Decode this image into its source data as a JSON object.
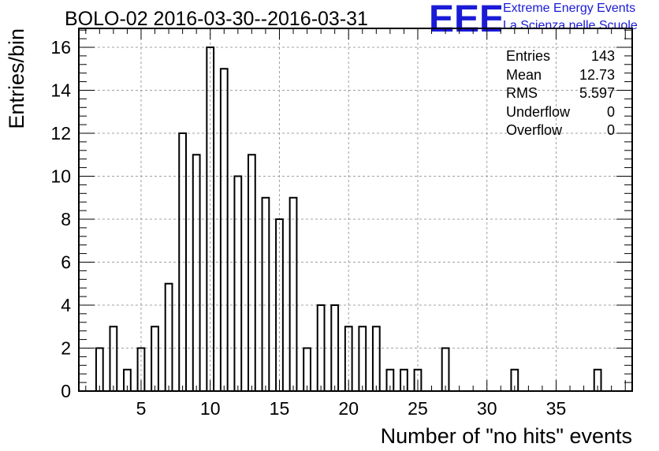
{
  "chart_data": {
    "type": "bar",
    "title": "BOLO-02 2016-03-30--2016-03-31",
    "xlabel": "Number of \"no hits\" events",
    "ylabel": "Entries/bin",
    "xlim": [
      0.5,
      40.5
    ],
    "ylim": [
      0,
      16.88
    ],
    "x_ticks": [
      5,
      10,
      15,
      20,
      25,
      30,
      35
    ],
    "y_ticks": [
      0,
      2,
      4,
      6,
      8,
      10,
      12,
      14,
      16
    ],
    "grid": true,
    "bin_width": 0.5,
    "bins": [
      {
        "x": 2,
        "value": 2
      },
      {
        "x": 3,
        "value": 3
      },
      {
        "x": 4,
        "value": 1
      },
      {
        "x": 5,
        "value": 2
      },
      {
        "x": 6,
        "value": 3
      },
      {
        "x": 7,
        "value": 5
      },
      {
        "x": 8,
        "value": 12
      },
      {
        "x": 9,
        "value": 11
      },
      {
        "x": 10,
        "value": 16
      },
      {
        "x": 11,
        "value": 15
      },
      {
        "x": 12,
        "value": 10
      },
      {
        "x": 13,
        "value": 11
      },
      {
        "x": 14,
        "value": 9
      },
      {
        "x": 15,
        "value": 8
      },
      {
        "x": 16,
        "value": 9
      },
      {
        "x": 17,
        "value": 2
      },
      {
        "x": 18,
        "value": 4
      },
      {
        "x": 19,
        "value": 4
      },
      {
        "x": 20,
        "value": 3
      },
      {
        "x": 21,
        "value": 3
      },
      {
        "x": 22,
        "value": 3
      },
      {
        "x": 23,
        "value": 1
      },
      {
        "x": 24,
        "value": 1
      },
      {
        "x": 25,
        "value": 1
      },
      {
        "x": 27,
        "value": 2
      },
      {
        "x": 32,
        "value": 1
      },
      {
        "x": 38,
        "value": 1
      }
    ],
    "stats": [
      {
        "label": "Entries",
        "value": "143"
      },
      {
        "label": "Mean",
        "value": "12.73"
      },
      {
        "label": "RMS",
        "value": "5.597"
      },
      {
        "label": "Underflow",
        "value": "0"
      },
      {
        "label": "Overflow",
        "value": "0"
      }
    ]
  },
  "logo": {
    "mark": "EEE",
    "line1": "Extreme Energy Events",
    "line2": "La Scienza nelle Scuole",
    "color": "#1a1ad6"
  }
}
